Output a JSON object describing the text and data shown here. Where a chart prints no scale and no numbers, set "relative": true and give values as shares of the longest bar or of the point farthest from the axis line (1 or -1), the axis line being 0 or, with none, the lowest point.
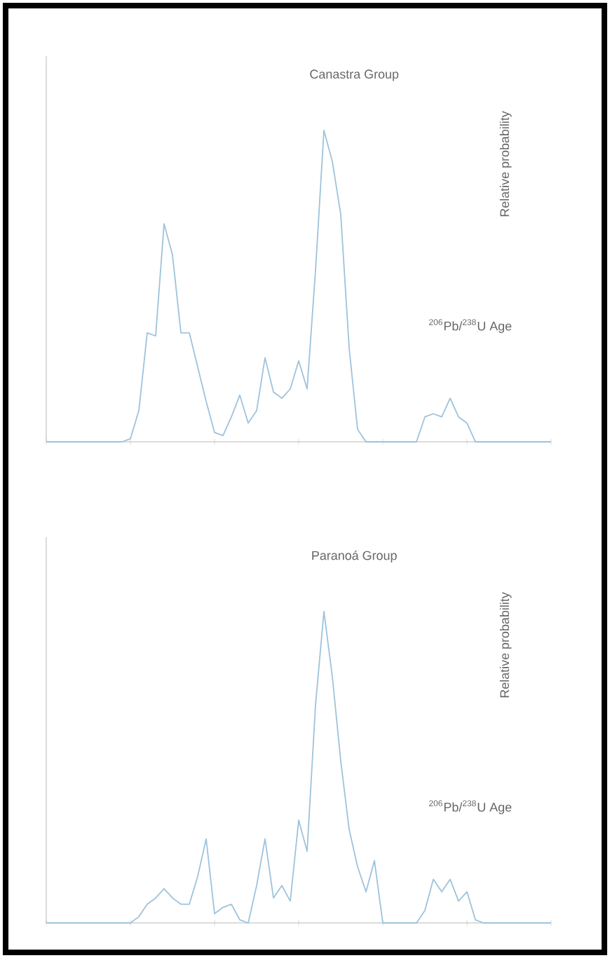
{
  "chart_data": [
    {
      "type": "line",
      "title": "Canastra Group",
      "ylabel": "Relative probability",
      "annotations": [
        "$^{206}$Pb/$^{238}$U Age"
      ],
      "relative": true,
      "color": "#9ec3dc",
      "categories": [
        null,
        null,
        null,
        null,
        null,
        null,
        null,
        null,
        null,
        null,
        null,
        null,
        null,
        null,
        null,
        null,
        null,
        null,
        null,
        null,
        null,
        null,
        null,
        null,
        null,
        null,
        null,
        null,
        null,
        null,
        null,
        null,
        null,
        null,
        null,
        null,
        null,
        null,
        null,
        null,
        null,
        null,
        null,
        null,
        null,
        null,
        null,
        null,
        null,
        null,
        null,
        null,
        null,
        null,
        null,
        null,
        null,
        null,
        null,
        null,
        null
      ],
      "values": [
        0,
        0,
        0,
        0,
        0,
        0,
        0,
        0,
        0,
        0,
        0.01,
        0.1,
        0.35,
        0.34,
        0.7,
        0.6,
        0.35,
        0.35,
        0.24,
        0.13,
        0.03,
        0.02,
        0.08,
        0.15,
        0.06,
        0.1,
        0.27,
        0.16,
        0.14,
        0.17,
        0.26,
        0.17,
        0.55,
        1,
        0.9,
        0.73,
        0.3,
        0.04,
        0,
        0,
        0,
        0,
        0,
        0,
        0,
        0.08,
        0.09,
        0.08,
        0.14,
        0.08,
        0.06,
        0,
        0,
        0,
        0,
        0,
        0,
        0,
        0,
        0,
        0
      ]
    },
    {
      "type": "line",
      "title": "Paranoá Group",
      "ylabel": "Relative probability",
      "annotations": [
        "$^{206}$Pb/$^{238}$U Age"
      ],
      "relative": true,
      "color": "#9ec3dc",
      "categories": [
        null,
        null,
        null,
        null,
        null,
        null,
        null,
        null,
        null,
        null,
        null,
        null,
        null,
        null,
        null,
        null,
        null,
        null,
        null,
        null,
        null,
        null,
        null,
        null,
        null,
        null,
        null,
        null,
        null,
        null,
        null,
        null,
        null,
        null,
        null,
        null,
        null,
        null,
        null,
        null,
        null,
        null,
        null,
        null,
        null,
        null,
        null,
        null,
        null,
        null,
        null,
        null,
        null,
        null,
        null,
        null,
        null,
        null,
        null,
        null,
        null
      ],
      "values": [
        0,
        0,
        0,
        0,
        0,
        0,
        0,
        0,
        0,
        0,
        0,
        0.02,
        0.06,
        0.08,
        0.11,
        0.08,
        0.06,
        0.06,
        0.15,
        0.27,
        0.03,
        0.05,
        0.06,
        0.01,
        0,
        0.12,
        0.27,
        0.08,
        0.12,
        0.07,
        0.33,
        0.23,
        0.7,
        1,
        0.79,
        0.52,
        0.3,
        0.18,
        0.1,
        0.2,
        0,
        0,
        0,
        0,
        0,
        0.04,
        0.14,
        0.1,
        0.14,
        0.07,
        0.1,
        0.01,
        0,
        0,
        0,
        0,
        0,
        0,
        0,
        0,
        0
      ]
    }
  ]
}
